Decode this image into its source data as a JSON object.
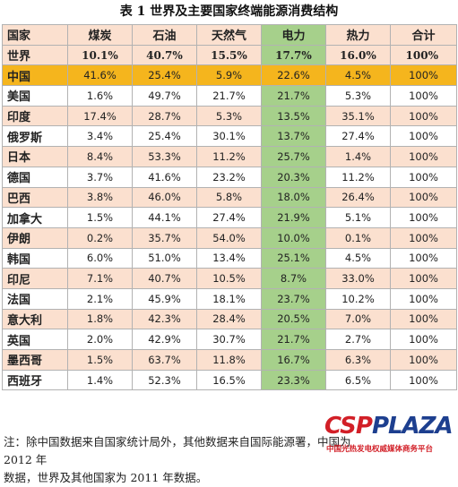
{
  "title": "表 1  世界及主要国家终端能源消费结构",
  "headers": [
    "国家",
    "煤炭",
    "石油",
    "天然气",
    "电力",
    "热力",
    "合计"
  ],
  "rows": [
    {
      "country": "世界",
      "values": [
        "10.1%",
        "40.7%",
        "15.5%",
        "17.7%",
        "16.0%",
        "100%"
      ]
    },
    {
      "country": "中国",
      "values": [
        "41.6%",
        "25.4%",
        "5.9%",
        "22.6%",
        "4.5%",
        "100%"
      ]
    },
    {
      "country": "美国",
      "values": [
        "1.6%",
        "49.7%",
        "21.7%",
        "21.7%",
        "5.3%",
        "100%"
      ]
    },
    {
      "country": "印度",
      "values": [
        "17.4%",
        "28.7%",
        "5.3%",
        "13.5%",
        "35.1%",
        "100%"
      ]
    },
    {
      "country": "俄罗斯",
      "values": [
        "3.4%",
        "25.4%",
        "30.1%",
        "13.7%",
        "27.4%",
        "100%"
      ]
    },
    {
      "country": "日本",
      "values": [
        "8.4%",
        "53.3%",
        "11.2%",
        "25.7%",
        "1.4%",
        "100%"
      ]
    },
    {
      "country": "德国",
      "values": [
        "3.7%",
        "41.6%",
        "23.2%",
        "20.3%",
        "11.2%",
        "100%"
      ]
    },
    {
      "country": "巴西",
      "values": [
        "3.8%",
        "46.0%",
        "5.8%",
        "18.0%",
        "26.4%",
        "100%"
      ]
    },
    {
      "country": "加拿大",
      "values": [
        "1.5%",
        "44.1%",
        "27.4%",
        "21.9%",
        "5.1%",
        "100%"
      ]
    },
    {
      "country": "伊朗",
      "values": [
        "0.2%",
        "35.7%",
        "54.0%",
        "10.0%",
        "0.1%",
        "100%"
      ]
    },
    {
      "country": "韩国",
      "values": [
        "6.0%",
        "51.0%",
        "13.4%",
        "25.1%",
        "4.5%",
        "100%"
      ]
    },
    {
      "country": "印尼",
      "values": [
        "7.1%",
        "40.7%",
        "10.5%",
        "8.7%",
        "33.0%",
        "100%"
      ]
    },
    {
      "country": "法国",
      "values": [
        "2.1%",
        "45.9%",
        "18.1%",
        "23.7%",
        "10.2%",
        "100%"
      ]
    },
    {
      "country": "意大利",
      "values": [
        "1.8%",
        "42.3%",
        "28.4%",
        "20.5%",
        "7.0%",
        "100%"
      ]
    },
    {
      "country": "英国",
      "values": [
        "2.0%",
        "42.9%",
        "30.7%",
        "21.7%",
        "2.7%",
        "100%"
      ]
    },
    {
      "country": "墨西哥",
      "values": [
        "1.5%",
        "63.7%",
        "11.8%",
        "16.7%",
        "6.3%",
        "100%"
      ]
    },
    {
      "country": "西班牙",
      "values": [
        "1.4%",
        "52.3%",
        "16.5%",
        "23.3%",
        "6.5%",
        "100%"
      ]
    }
  ],
  "note": {
    "line1": "注：除中国数据来自国家统计局外，其他数据来自国际能源署，中国为 2012 年",
    "line2": "数据，世界及其他国家为 2011 年数据。"
  },
  "watermark": {
    "logo_main": "CSP",
    "logo_accent": "PLAZA",
    "subtitle": "中国光热发电权威媒体商务平台"
  },
  "colors": {
    "header_bg": "#fbe0cf",
    "row_odd_bg": "#fbe0cf",
    "row_even_bg": "#ffffff",
    "china_highlight": "#f5b51d",
    "electricity_column": "#a6d08b",
    "watermark_red": "#d21f27"
  }
}
